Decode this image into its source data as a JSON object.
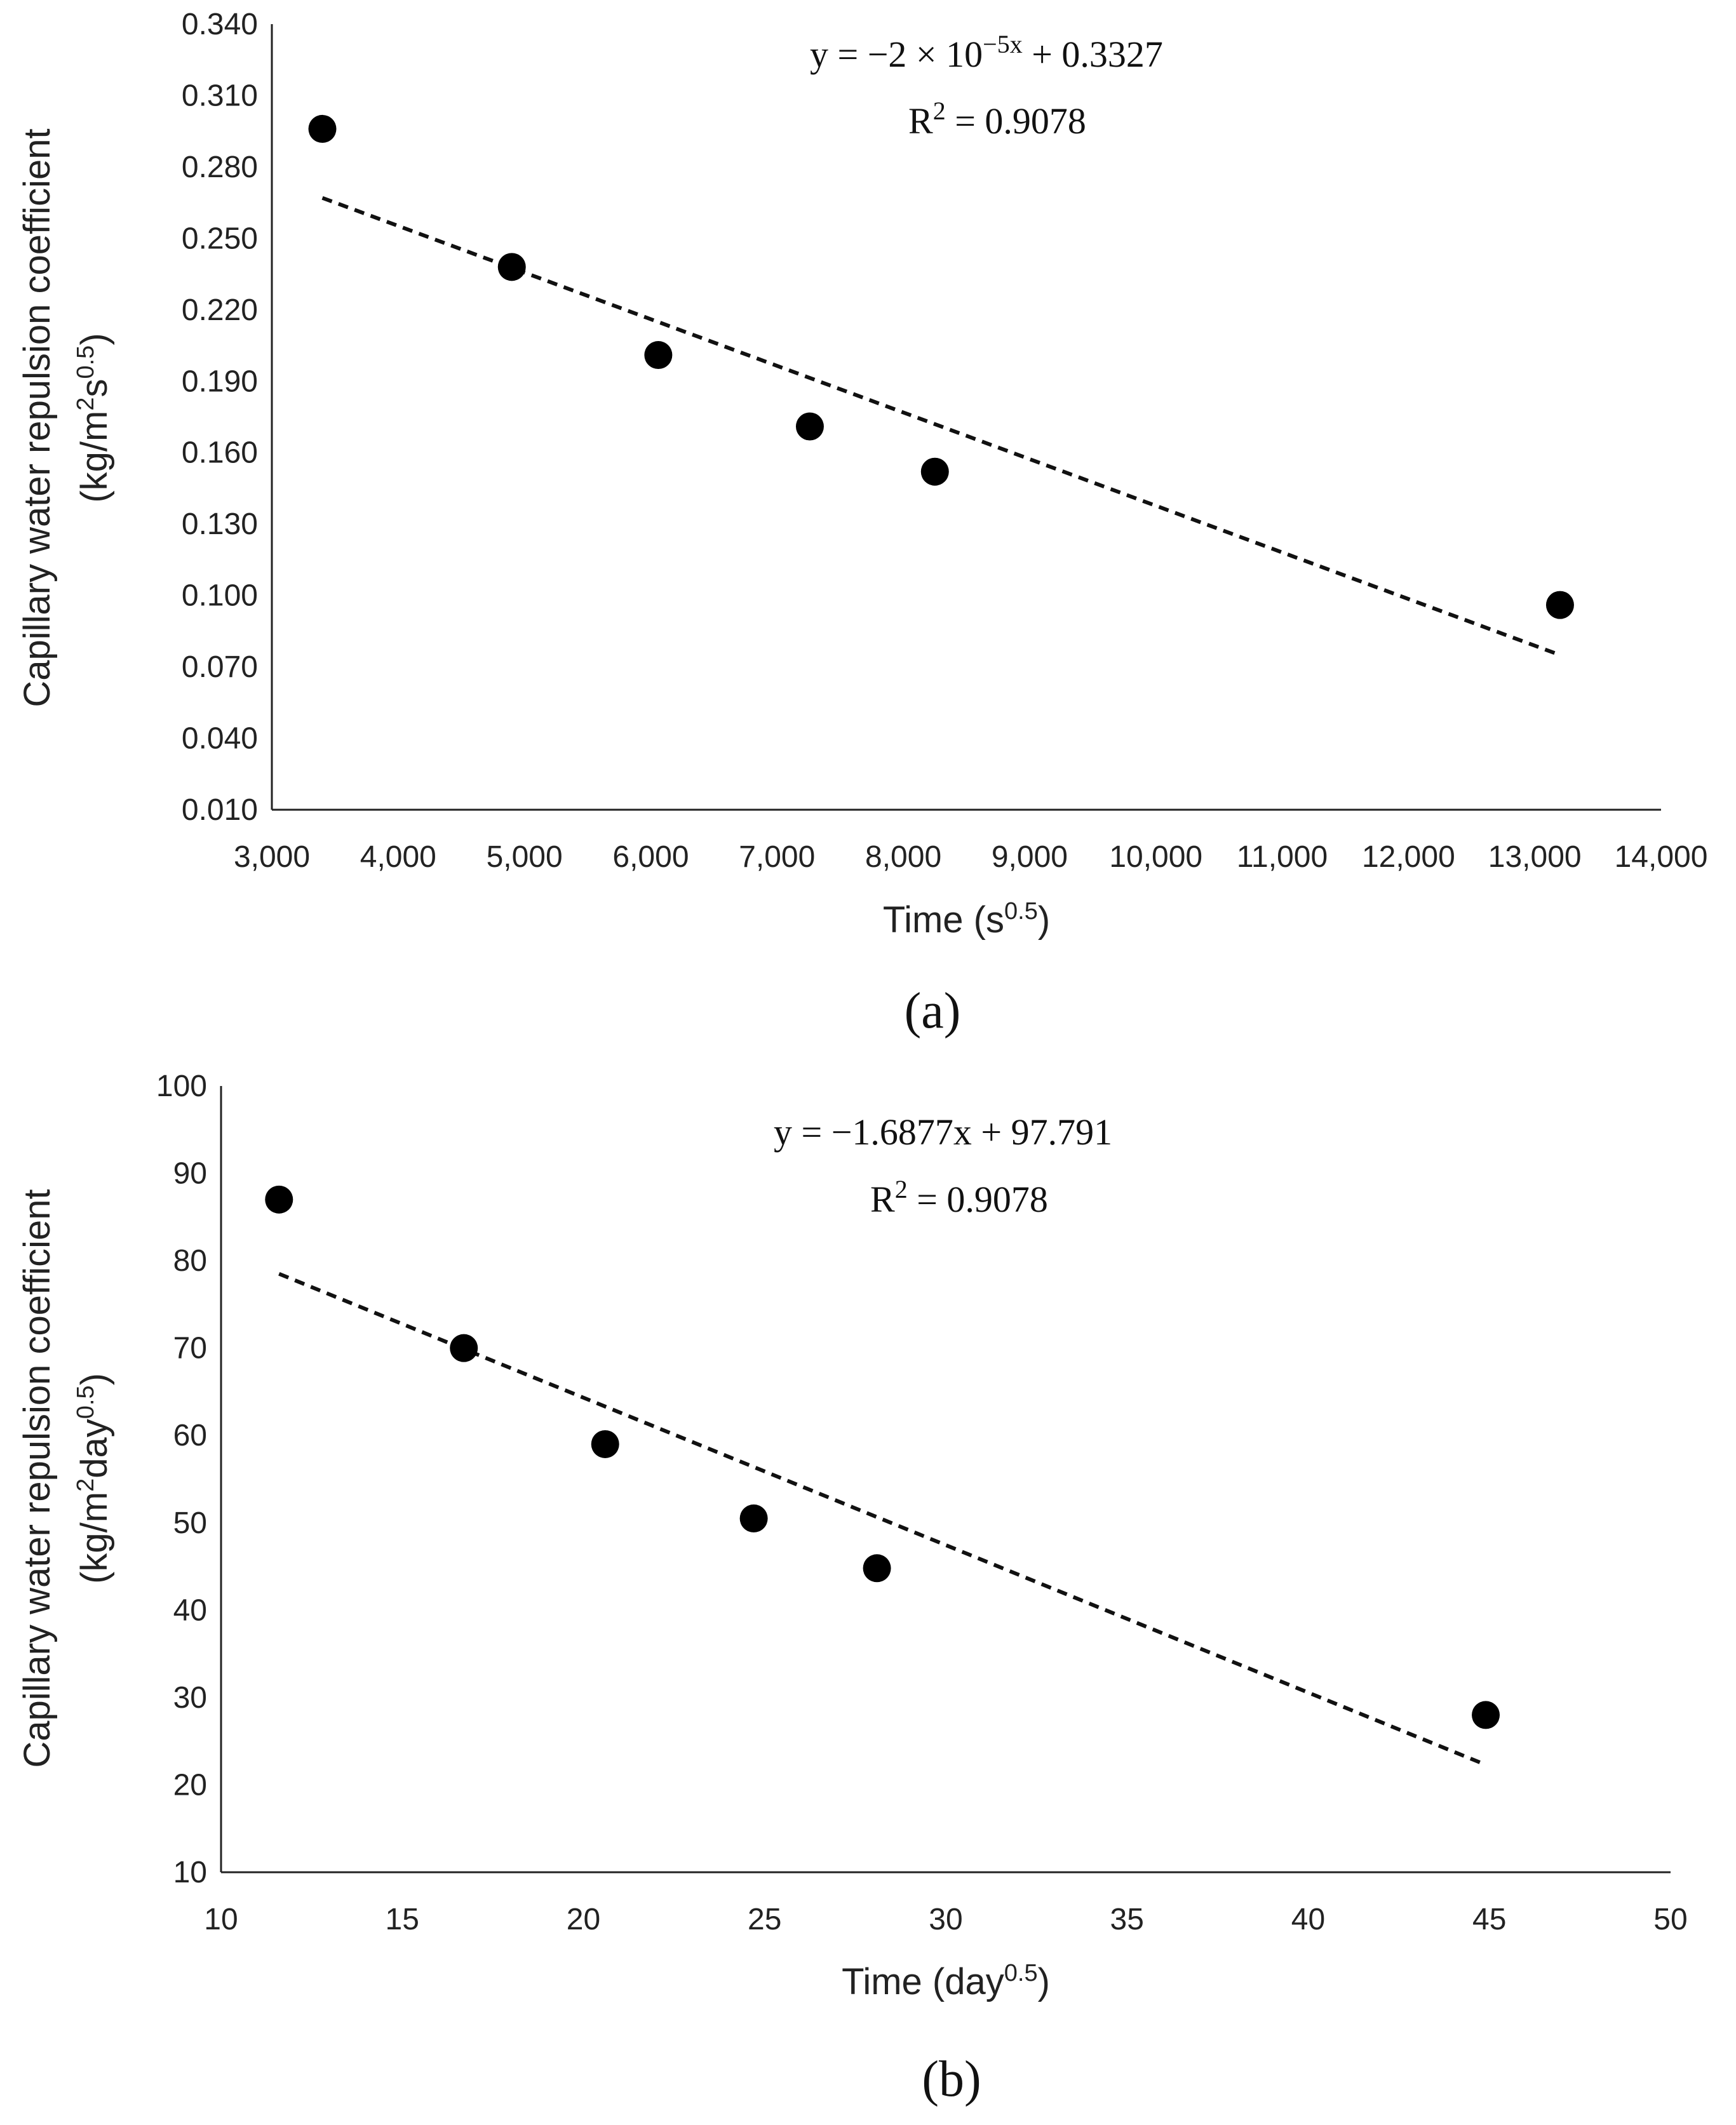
{
  "chart_data": [
    {
      "type": "scatter",
      "panel": "(a)",
      "x": [
        3400,
        4900,
        6060,
        7260,
        8250,
        13200
      ],
      "y": [
        0.296,
        0.238,
        0.201,
        0.171,
        0.152,
        0.096
      ],
      "xlim": [
        3000,
        14000
      ],
      "ylim": [
        0.01,
        0.34
      ],
      "xticks": [
        "3,000",
        "4,000",
        "5,000",
        "6,000",
        "7,000",
        "8,000",
        "9,000",
        "10,000",
        "11,000",
        "12,000",
        "13,000",
        "14,000"
      ],
      "yticks": [
        "0.010",
        "0.040",
        "0.070",
        "0.100",
        "0.130",
        "0.160",
        "0.190",
        "0.220",
        "0.250",
        "0.280",
        "0.310",
        "0.340"
      ],
      "xlabel": "Time (s",
      "xlabel_sup": "0.5",
      "xlabel_end": ")",
      "ylabel_line1": "Capillary water repulsion coefficient",
      "ylabel_line2_prefix": "(kg/m",
      "ylabel_sup1": "2",
      "ylabel_mid": "s",
      "ylabel_sup2": "0.5",
      "ylabel_end": ")",
      "trendline": {
        "x_start": 3400,
        "x_end": 13200,
        "y_start": 0.267,
        "y_end": 0.075,
        "style": "dashed"
      },
      "equation_prefix": "y = −2 × 10",
      "equation_sup": "−5x",
      "equation_suffix": " + 0.3327",
      "r2_label": "R",
      "r2_sup": "2",
      "r2_value": " = 0.9078"
    },
    {
      "type": "scatter",
      "panel": "(b)",
      "x": [
        11.6,
        16.7,
        20.6,
        24.7,
        28.1,
        44.9
      ],
      "y": [
        87.0,
        70.0,
        59.0,
        50.5,
        44.8,
        28.0
      ],
      "xlim": [
        10,
        50
      ],
      "ylim": [
        10,
        100
      ],
      "xticks": [
        "10",
        "15",
        "20",
        "25",
        "30",
        "35",
        "40",
        "45",
        "50"
      ],
      "yticks": [
        "10",
        "20",
        "30",
        "40",
        "50",
        "60",
        "70",
        "80",
        "90",
        "100"
      ],
      "xlabel": "Time (day",
      "xlabel_sup": "0.5",
      "xlabel_end": ")",
      "ylabel_line1": "Capillary water repulsion coefficient",
      "ylabel_line2_prefix": "(kg/m",
      "ylabel_sup1": "2",
      "ylabel_mid": "day",
      "ylabel_sup2": "0.5",
      "ylabel_end": ")",
      "trendline": {
        "x_start": 11.6,
        "x_end": 44.9,
        "y_start": 78.5,
        "y_end": 22.3,
        "style": "dashed"
      },
      "equation_prefix": "y = −1.6877x + 97.791",
      "equation_sup": "",
      "equation_suffix": "",
      "r2_label": "R",
      "r2_sup": "2",
      "r2_value": " = 0.9078"
    }
  ],
  "captions": [
    "(a)",
    "(b)"
  ]
}
